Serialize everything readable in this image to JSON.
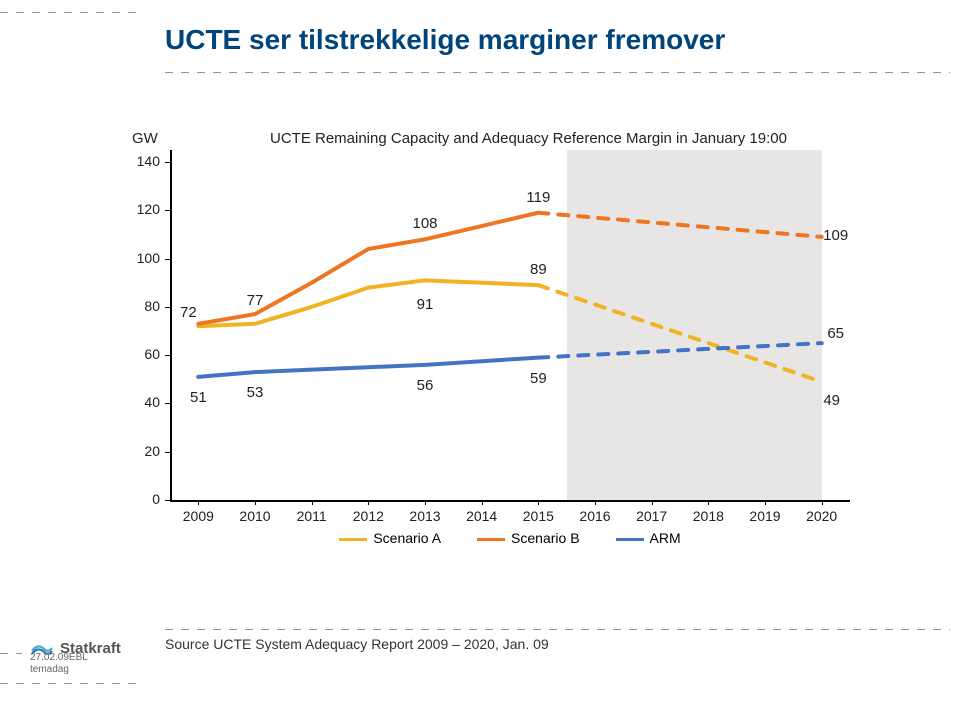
{
  "page": {
    "title": "UCTE ser tilstrekkelige marginer fremover",
    "source": "Source UCTE System Adequacy Report 2009 – 2020, Jan. 09",
    "footer": "27.02.09EBL\ntemadag",
    "logo_text": "Statkraft"
  },
  "chart": {
    "type": "line",
    "title": "UCTE Remaining Capacity and Adequacy Reference Margin in January 19:00",
    "y_unit_label": "GW",
    "background_color": "#ffffff",
    "shaded_region_color": "#e8e6e4",
    "shaded_x_start": 2015.5,
    "shaded_x_end": 2020,
    "x_axis": {
      "ticks": [
        2009,
        2010,
        2011,
        2012,
        2013,
        2014,
        2015,
        2016,
        2017,
        2018,
        2019,
        2020
      ],
      "xlim": [
        2008.5,
        2020.5
      ]
    },
    "y_axis": {
      "ticks": [
        0,
        20,
        40,
        60,
        80,
        100,
        120,
        140
      ],
      "ylim": [
        0,
        145
      ]
    },
    "series": [
      {
        "name": "Scenario A",
        "color": "#f0b323",
        "line_width": 4,
        "solid_until_index": 5,
        "x": [
          2009,
          2010,
          2011,
          2012,
          2013,
          2015,
          2020
        ],
        "y": [
          72,
          73,
          80,
          88,
          91,
          89,
          49
        ],
        "labels": [
          {
            "x": 2009,
            "y": 72,
            "text": "72",
            "dy": -22,
            "dx": -10
          },
          {
            "x": 2013,
            "y": 91,
            "text": "91",
            "dy": 16,
            "dx": 0
          },
          {
            "x": 2015,
            "y": 89,
            "text": "89",
            "dy": -24,
            "dx": 0
          },
          {
            "x": 2020,
            "y": 49,
            "text": "49",
            "dy": 10,
            "dx": 10
          }
        ]
      },
      {
        "name": "Scenario B",
        "color": "#ee7623",
        "line_width": 4,
        "solid_until_index": 5,
        "x": [
          2009,
          2010,
          2011,
          2012,
          2013,
          2015,
          2020
        ],
        "y": [
          73,
          77,
          90,
          104,
          108,
          119,
          109
        ],
        "labels": [
          {
            "x": 2010,
            "y": 77,
            "text": "77",
            "dy": -22,
            "dx": 0
          },
          {
            "x": 2013,
            "y": 108,
            "text": "108",
            "dy": -24,
            "dx": 0
          },
          {
            "x": 2015,
            "y": 119,
            "text": "119",
            "dy": -24,
            "dx": 0
          },
          {
            "x": 2020,
            "y": 109,
            "text": "109",
            "dy": -10,
            "dx": 14
          }
        ]
      },
      {
        "name": "ARM",
        "color": "#4472c4",
        "line_width": 4,
        "solid_until_index": 5,
        "x": [
          2009,
          2010,
          2011,
          2012,
          2013,
          2015,
          2020
        ],
        "y": [
          51,
          53,
          54,
          55,
          56,
          59,
          65
        ],
        "labels": [
          {
            "x": 2009,
            "y": 51,
            "text": "51",
            "dy": 12,
            "dx": 0
          },
          {
            "x": 2010,
            "y": 53,
            "text": "53",
            "dy": 12,
            "dx": 0
          },
          {
            "x": 2013,
            "y": 56,
            "text": "56",
            "dy": 12,
            "dx": 0
          },
          {
            "x": 2015,
            "y": 59,
            "text": "59",
            "dy": 12,
            "dx": 0
          },
          {
            "x": 2020,
            "y": 65,
            "text": "65",
            "dy": -18,
            "dx": 14
          }
        ]
      }
    ],
    "legend": [
      {
        "label": "Scenario A",
        "color": "#f0b323"
      },
      {
        "label": "Scenario B",
        "color": "#ee7623"
      },
      {
        "label": "ARM",
        "color": "#4472c4"
      }
    ]
  },
  "colors": {
    "title_text": "#00447c",
    "dashed_rule": "#7a99b8"
  }
}
